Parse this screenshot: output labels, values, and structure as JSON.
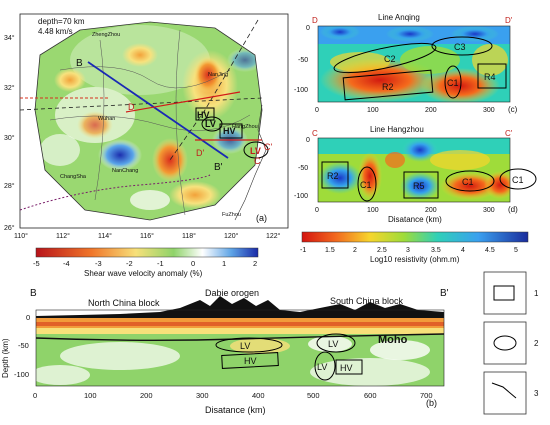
{
  "panel_a": {
    "depth_text": "depth=70 km",
    "velocity_text": "4.48 km/s",
    "label": "(a)",
    "cities": [
      "ZhengZhou",
      "NanJing",
      "Wuhan",
      "NanChang",
      "ChangSha",
      "FuZhou",
      "HangZhou"
    ],
    "point_labels": {
      "B": "B",
      "Bp": "B'",
      "D": "D",
      "Dp": "D'",
      "C": "C",
      "Cp": "C'"
    },
    "region_labels": {
      "HV": "HV",
      "LV": "LV",
      "HV2": "HV",
      "LV2": "LV"
    },
    "x_ticks": [
      "110°",
      "112°",
      "114°",
      "116°",
      "118°",
      "120°",
      "122°"
    ],
    "y_ticks": [
      "34°",
      "32°",
      "30°",
      "28°",
      "26°"
    ]
  },
  "colorbar_a": {
    "ticks": [
      "-5",
      "-4",
      "-3",
      "-2",
      "-1",
      "0",
      "1",
      "2"
    ],
    "label": "Shear wave velocity anomaly (%)"
  },
  "panel_c": {
    "title": "Line Anqing",
    "left_label": "D",
    "right_label": "D'",
    "y_ticks": [
      "0",
      "-50",
      "-100"
    ],
    "x_ticks": [
      "0",
      "100",
      "200",
      "300"
    ],
    "labels": [
      "C2",
      "C3",
      "R2",
      "C1",
      "R4"
    ],
    "panel_label": "(c)"
  },
  "panel_d": {
    "title": "Line Hangzhou",
    "left_label": "C",
    "right_label": "C'",
    "y_ticks": [
      "0",
      "-50",
      "-100"
    ],
    "x_ticks": [
      "0",
      "100",
      "200",
      "300"
    ],
    "labels": [
      "R2",
      "C1",
      "R5",
      "C1",
      "C1"
    ],
    "xlabel": "Disatance (km)",
    "panel_label": "(d)"
  },
  "colorbar_r": {
    "ticks": [
      "-1",
      "1.5",
      "2",
      "2.5",
      "3",
      "3.5",
      "4",
      "4.5",
      "5"
    ],
    "label": "Log10 resistivity (ohm.m)"
  },
  "panel_b": {
    "left_label": "B",
    "right_label": "B'",
    "blocks": [
      "North China block",
      "Dabie orogen",
      "South China block"
    ],
    "moho": "Moho",
    "ylabel": "Depth (km)",
    "y_ticks": [
      "0",
      "-50",
      "-100"
    ],
    "x_ticks": [
      "0",
      "100",
      "200",
      "300",
      "400",
      "500",
      "600",
      "700"
    ],
    "xlabel": "Disatance (km)",
    "labels": [
      "LV",
      "LV",
      "HV",
      "LV",
      "HV"
    ],
    "panel_label": "(b)"
  },
  "legend": {
    "items": [
      "1",
      "2",
      "3"
    ]
  }
}
